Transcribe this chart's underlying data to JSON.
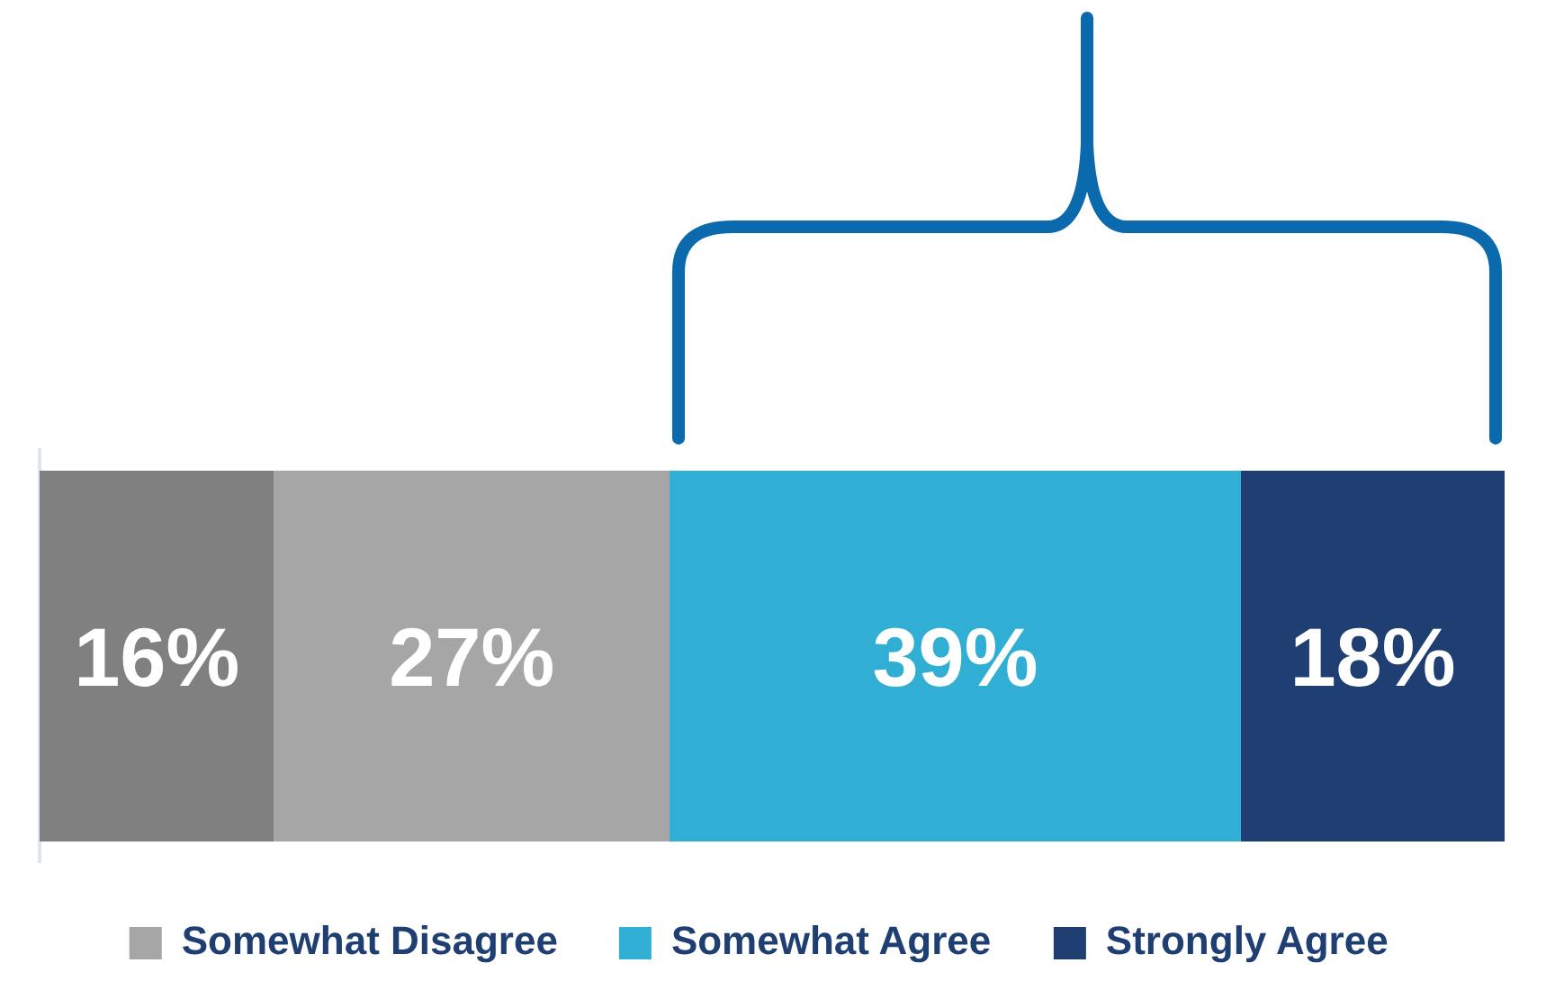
{
  "chart_data": {
    "type": "bar",
    "orientation": "horizontal",
    "stacked": true,
    "categories": [
      null
    ],
    "legend": "bottom",
    "series": [
      {
        "color": "#808080",
        "values": [
          16
        ],
        "value_labels": [
          "16%"
        ]
      },
      {
        "name": "Somewhat Disagree",
        "color": "#a6a6a6",
        "values": [
          27
        ],
        "value_labels": [
          "27%"
        ]
      },
      {
        "name": "Somewhat Agree",
        "color": "#31aed3",
        "values": [
          39
        ],
        "value_labels": [
          "39%"
        ]
      },
      {
        "name": "Strongly Agree",
        "color": "#1f3f72",
        "values": [
          18
        ],
        "value_labels": [
          "18%"
        ]
      }
    ]
  }
}
